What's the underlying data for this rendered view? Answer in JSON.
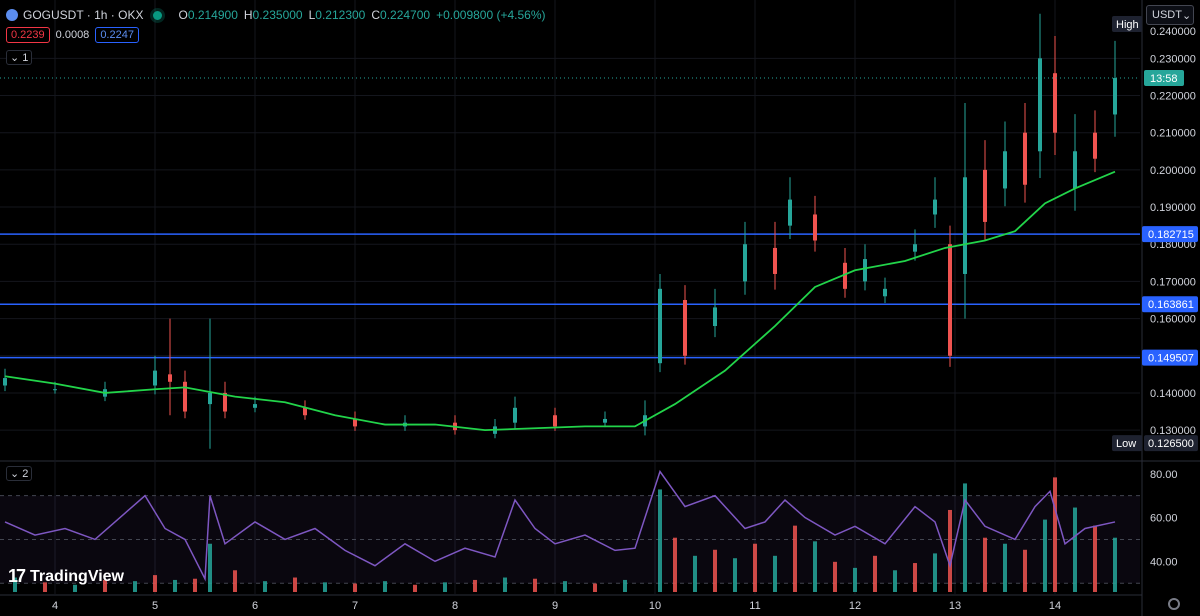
{
  "header": {
    "symbol": "GOGUSDT · 1h · OKX",
    "open_key": "O",
    "open": "0.214900",
    "high_key": "H",
    "high": "0.235000",
    "low_key": "L",
    "low": "0.212300",
    "close_key": "C",
    "close": "0.224700",
    "change": "+0.009800 (+4.56%)"
  },
  "quotes": {
    "bid": "0.2239",
    "spread": "0.0008",
    "ask": "0.2247"
  },
  "panes": {
    "main_tag": "1",
    "osc_tag": "2"
  },
  "currency": "USDT",
  "branding": "TradingView",
  "colors": {
    "up": "#26a69a",
    "down": "#ef5350",
    "ma": "#22d44a",
    "hline": "#2962ff",
    "rsi": "#7e57c2"
  },
  "chart_data": [
    {
      "type": "candlestick",
      "symbol": "GOGUSDT",
      "timeframe": "1h",
      "exchange": "OKX",
      "ylim": [
        0.1225,
        0.243
      ],
      "y_ticks": [
        "0.230000",
        "0.220000",
        "0.210000",
        "0.200000",
        "0.190000",
        "0.180000",
        "0.170000",
        "0.160000",
        "0.150000",
        "0.140000",
        "0.130000"
      ],
      "x_ticks": [
        "4",
        "5",
        "6",
        "7",
        "8",
        "9",
        "10",
        "11",
        "12",
        "13",
        "14"
      ],
      "price_lines": [
        0.182715,
        0.163861,
        0.149507
      ],
      "price_line_labels": [
        "0.182715",
        "0.163861",
        "0.149507"
      ],
      "last_price": 0.2247,
      "countdown": "13:58",
      "high_label": "High",
      "high_value": "0.240000",
      "low_label": "Low",
      "low_value": "0.126500",
      "ma_path_points": [
        [
          3.5,
          0.1445
        ],
        [
          4.0,
          0.1425
        ],
        [
          4.5,
          0.14
        ],
        [
          5.0,
          0.141
        ],
        [
          5.3,
          0.1415
        ],
        [
          5.8,
          0.139
        ],
        [
          6.3,
          0.1375
        ],
        [
          6.8,
          0.134
        ],
        [
          7.3,
          0.1315
        ],
        [
          7.8,
          0.1315
        ],
        [
          8.3,
          0.13
        ],
        [
          8.8,
          0.1305
        ],
        [
          9.3,
          0.131
        ],
        [
          9.8,
          0.131
        ],
        [
          10.2,
          0.137
        ],
        [
          10.7,
          0.146
        ],
        [
          11.2,
          0.158
        ],
        [
          11.6,
          0.1685
        ],
        [
          12.0,
          0.173
        ],
        [
          12.5,
          0.1755
        ],
        [
          12.9,
          0.179
        ],
        [
          13.3,
          0.181
        ],
        [
          13.6,
          0.1835
        ],
        [
          13.9,
          0.191
        ],
        [
          14.2,
          0.195
        ],
        [
          14.6,
          0.1995
        ]
      ],
      "candle_segments": [
        [
          3.5,
          0.142,
          0.144,
          0.0025
        ],
        [
          4.0,
          0.141,
          0.141,
          0.002
        ],
        [
          4.5,
          0.139,
          0.141,
          0.002
        ],
        [
          5.0,
          0.142,
          0.146,
          0.004
        ],
        [
          5.15,
          0.145,
          0.143,
          0.015
        ],
        [
          5.3,
          0.143,
          0.135,
          0.003
        ],
        [
          5.55,
          0.137,
          0.14,
          0.02
        ],
        [
          5.7,
          0.14,
          0.135,
          0.003
        ],
        [
          6.0,
          0.136,
          0.137,
          0.002
        ],
        [
          6.5,
          0.136,
          0.134,
          0.002
        ],
        [
          7.0,
          0.133,
          0.131,
          0.002
        ],
        [
          7.5,
          0.131,
          0.132,
          0.002
        ],
        [
          8.0,
          0.132,
          0.13,
          0.002
        ],
        [
          8.4,
          0.129,
          0.131,
          0.002
        ],
        [
          8.6,
          0.132,
          0.136,
          0.003
        ],
        [
          9.0,
          0.134,
          0.131,
          0.002
        ],
        [
          9.5,
          0.132,
          0.133,
          0.002
        ],
        [
          9.9,
          0.131,
          0.134,
          0.004
        ],
        [
          10.05,
          0.148,
          0.168,
          0.004
        ],
        [
          10.3,
          0.165,
          0.15,
          0.004
        ],
        [
          10.6,
          0.158,
          0.163,
          0.005
        ],
        [
          10.9,
          0.17,
          0.18,
          0.006
        ],
        [
          11.2,
          0.179,
          0.172,
          0.007
        ],
        [
          11.35,
          0.185,
          0.192,
          0.006
        ],
        [
          11.6,
          0.188,
          0.181,
          0.005
        ],
        [
          11.9,
          0.175,
          0.168,
          0.004
        ],
        [
          12.1,
          0.17,
          0.176,
          0.004
        ],
        [
          12.3,
          0.166,
          0.168,
          0.003
        ],
        [
          12.6,
          0.178,
          0.18,
          0.004
        ],
        [
          12.8,
          0.188,
          0.192,
          0.006
        ],
        [
          12.95,
          0.18,
          0.15,
          0.005
        ],
        [
          13.1,
          0.172,
          0.198,
          0.02
        ],
        [
          13.3,
          0.2,
          0.186,
          0.008
        ],
        [
          13.5,
          0.195,
          0.205,
          0.008
        ],
        [
          13.7,
          0.21,
          0.196,
          0.008
        ],
        [
          13.85,
          0.205,
          0.23,
          0.012
        ],
        [
          14.0,
          0.226,
          0.21,
          0.01
        ],
        [
          14.2,
          0.195,
          0.205,
          0.01
        ],
        [
          14.4,
          0.21,
          0.203,
          0.006
        ],
        [
          14.6,
          0.2149,
          0.2247,
          0.01
        ]
      ]
    },
    {
      "type": "oscillator",
      "ylim": [
        26,
        84
      ],
      "y_ticks": [
        "80.00",
        "60.00",
        "40.00"
      ],
      "bands": [
        70,
        30
      ],
      "rsi_points": [
        [
          3.5,
          58
        ],
        [
          3.8,
          52
        ],
        [
          4.1,
          55
        ],
        [
          4.4,
          50
        ],
        [
          4.7,
          62
        ],
        [
          4.9,
          70
        ],
        [
          5.1,
          55
        ],
        [
          5.3,
          50
        ],
        [
          5.5,
          32
        ],
        [
          5.55,
          70
        ],
        [
          5.7,
          48
        ],
        [
          6.0,
          58
        ],
        [
          6.3,
          50
        ],
        [
          6.6,
          55
        ],
        [
          6.9,
          45
        ],
        [
          7.2,
          38
        ],
        [
          7.5,
          48
        ],
        [
          7.8,
          40
        ],
        [
          8.1,
          46
        ],
        [
          8.4,
          42
        ],
        [
          8.6,
          68
        ],
        [
          8.8,
          55
        ],
        [
          9.0,
          48
        ],
        [
          9.3,
          52
        ],
        [
          9.6,
          45
        ],
        [
          9.8,
          46
        ],
        [
          10.05,
          81
        ],
        [
          10.3,
          65
        ],
        [
          10.6,
          70
        ],
        [
          10.9,
          55
        ],
        [
          11.1,
          58
        ],
        [
          11.3,
          68
        ],
        [
          11.5,
          60
        ],
        [
          11.8,
          52
        ],
        [
          12.0,
          56
        ],
        [
          12.3,
          48
        ],
        [
          12.6,
          65
        ],
        [
          12.8,
          58
        ],
        [
          12.95,
          38
        ],
        [
          13.1,
          68
        ],
        [
          13.3,
          56
        ],
        [
          13.6,
          50
        ],
        [
          13.8,
          65
        ],
        [
          13.95,
          72
        ],
        [
          14.1,
          48
        ],
        [
          14.3,
          55
        ],
        [
          14.6,
          58
        ]
      ],
      "volume_bars": [
        [
          3.6,
          12,
          0
        ],
        [
          3.9,
          8,
          1
        ],
        [
          4.2,
          6,
          0
        ],
        [
          4.5,
          10,
          1
        ],
        [
          4.8,
          9,
          0
        ],
        [
          5.0,
          14,
          1
        ],
        [
          5.2,
          10,
          0
        ],
        [
          5.4,
          11,
          1
        ],
        [
          5.55,
          40,
          0
        ],
        [
          5.8,
          18,
          1
        ],
        [
          6.1,
          9,
          0
        ],
        [
          6.4,
          12,
          1
        ],
        [
          6.7,
          8,
          0
        ],
        [
          7.0,
          7,
          1
        ],
        [
          7.3,
          9,
          0
        ],
        [
          7.6,
          6,
          1
        ],
        [
          7.9,
          8,
          0
        ],
        [
          8.2,
          10,
          1
        ],
        [
          8.5,
          12,
          0
        ],
        [
          8.8,
          11,
          1
        ],
        [
          9.1,
          9,
          0
        ],
        [
          9.4,
          7,
          1
        ],
        [
          9.7,
          10,
          0
        ],
        [
          10.05,
          85,
          0
        ],
        [
          10.2,
          45,
          1
        ],
        [
          10.4,
          30,
          0
        ],
        [
          10.6,
          35,
          1
        ],
        [
          10.8,
          28,
          0
        ],
        [
          11.0,
          40,
          1
        ],
        [
          11.2,
          30,
          0
        ],
        [
          11.4,
          55,
          1
        ],
        [
          11.6,
          42,
          0
        ],
        [
          11.8,
          25,
          1
        ],
        [
          12.0,
          20,
          0
        ],
        [
          12.2,
          30,
          1
        ],
        [
          12.4,
          18,
          0
        ],
        [
          12.6,
          24,
          1
        ],
        [
          12.8,
          32,
          0
        ],
        [
          12.95,
          68,
          1
        ],
        [
          13.1,
          90,
          0
        ],
        [
          13.3,
          45,
          1
        ],
        [
          13.5,
          40,
          0
        ],
        [
          13.7,
          35,
          1
        ],
        [
          13.9,
          60,
          0
        ],
        [
          14.0,
          95,
          1
        ],
        [
          14.2,
          70,
          0
        ],
        [
          14.4,
          55,
          1
        ],
        [
          14.6,
          45,
          0
        ]
      ]
    }
  ]
}
